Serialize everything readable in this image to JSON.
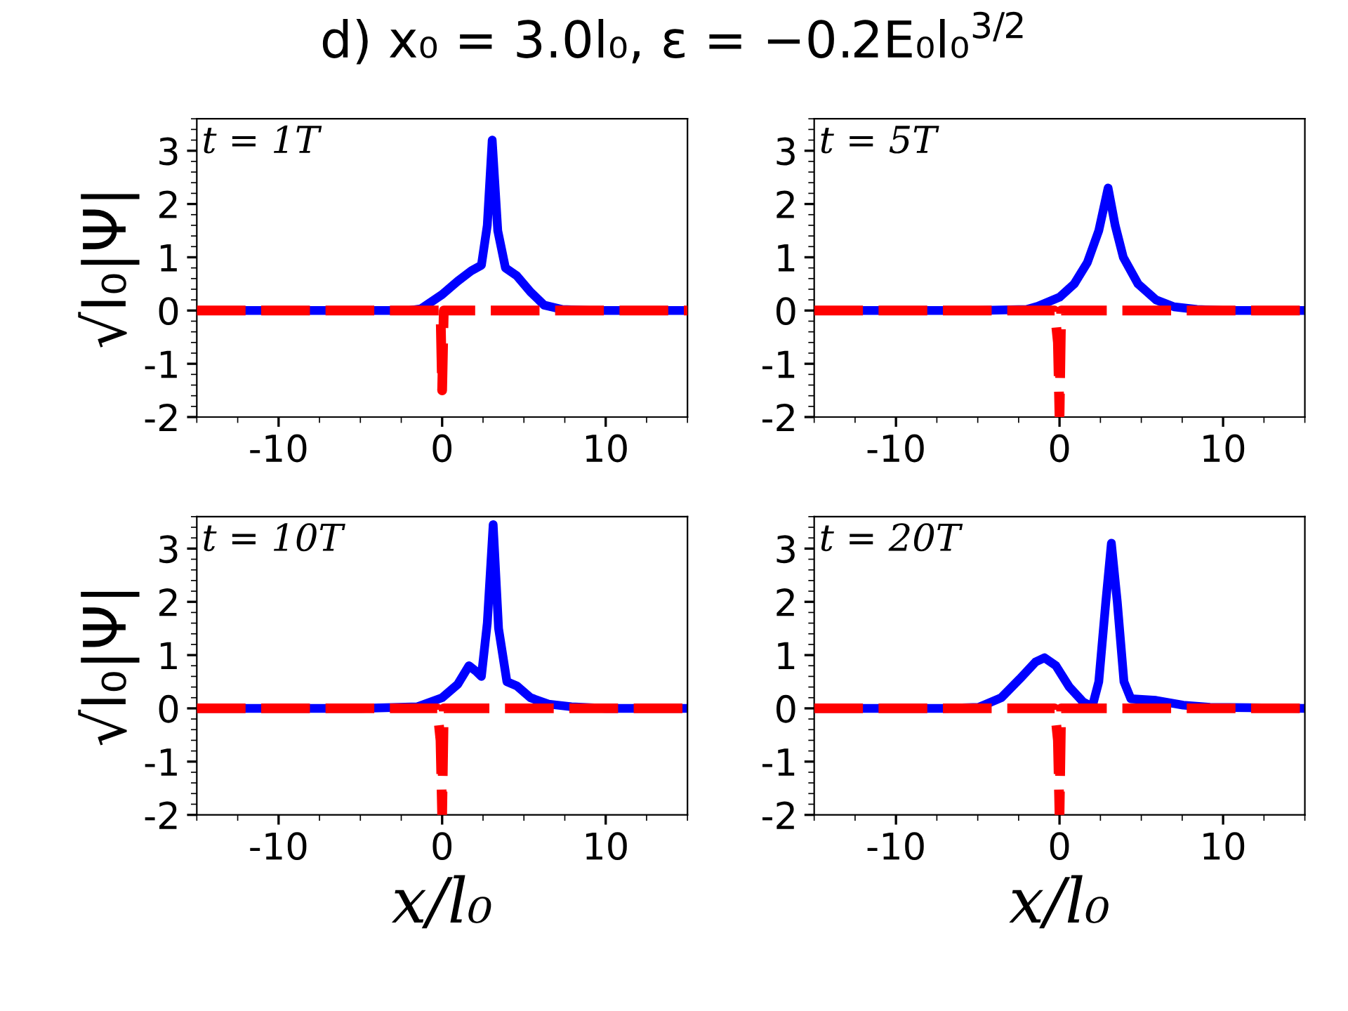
{
  "chart_data": [
    {
      "type": "line",
      "title": "d) x₀ = 3.0l₀, ε = −0.2E₀l₀$^{3/2}$",
      "ylabel": "√l₀|Ψ|",
      "annotations": [
        "t = 1T"
      ],
      "xlim": [
        -15,
        15
      ],
      "ylim": [
        -2,
        3.6
      ],
      "xticks": [
        -10,
        0,
        10
      ],
      "yticks": [
        -2,
        -1,
        0,
        1,
        2,
        3
      ],
      "series": [
        {
          "color": "#0000ff",
          "line_style": "solid",
          "x": [
            -15,
            -5,
            -2,
            -1.3,
            0,
            0.95,
            1.8,
            2.4,
            2.76,
            3.06,
            3.4,
            3.87,
            4.57,
            5.4,
            6.24,
            7.35,
            9,
            15
          ],
          "values": [
            0,
            0,
            0,
            0.03,
            0.3,
            0.55,
            0.75,
            0.85,
            1.6,
            3.2,
            1.5,
            0.8,
            0.65,
            0.35,
            0.1,
            0.02,
            0,
            0
          ]
        },
        {
          "color": "#ff0000",
          "line_style": "dashed",
          "x": [
            -15,
            -0.1,
            0,
            0.1,
            15
          ],
          "values": [
            0,
            0,
            -1.5,
            0,
            0
          ]
        }
      ]
    },
    {
      "type": "line",
      "annotations": [
        "t = 5T"
      ],
      "xlim": [
        -15,
        15
      ],
      "ylim": [
        -2,
        3.6
      ],
      "xticks": [
        -10,
        0,
        10
      ],
      "yticks": [
        -2,
        -1,
        0,
        1,
        2,
        3
      ],
      "series": [
        {
          "color": "#0000ff",
          "line_style": "solid",
          "x": [
            -15,
            -5,
            -2,
            -1.33,
            0,
            0.9,
            1.7,
            2.4,
            2.97,
            3.4,
            3.9,
            4.8,
            5.9,
            7,
            8.4,
            10,
            15
          ],
          "values": [
            0,
            0,
            0.02,
            0.08,
            0.25,
            0.5,
            0.9,
            1.5,
            2.3,
            1.6,
            1.0,
            0.5,
            0.2,
            0.07,
            0.02,
            0,
            0
          ]
        },
        {
          "color": "#ff0000",
          "line_style": "dashed",
          "x": [
            -15,
            -0.3,
            -0.1,
            0,
            0.1,
            15
          ],
          "values": [
            0,
            0,
            -0.6,
            -2,
            0,
            0
          ]
        }
      ]
    },
    {
      "type": "line",
      "ylabel": "√l₀|Ψ|",
      "xlabel": "x/l₀",
      "annotations": [
        "t = 10T"
      ],
      "xlim": [
        -15,
        15
      ],
      "ylim": [
        -2,
        3.6
      ],
      "xticks": [
        -10,
        0,
        10
      ],
      "yticks": [
        -2,
        -1,
        0,
        1,
        2,
        3
      ],
      "series": [
        {
          "color": "#0000ff",
          "line_style": "solid",
          "x": [
            -15,
            -5,
            -1.5,
            0,
            0.95,
            1.64,
            2.06,
            2.4,
            2.76,
            3.12,
            3.45,
            3.96,
            4.57,
            5.4,
            6.5,
            7.9,
            10,
            15
          ],
          "values": [
            0,
            0,
            0.03,
            0.2,
            0.45,
            0.8,
            0.7,
            0.6,
            1.6,
            3.45,
            1.5,
            0.5,
            0.42,
            0.2,
            0.08,
            0.03,
            0,
            0
          ]
        },
        {
          "color": "#ff0000",
          "line_style": "dashed",
          "x": [
            -15,
            -0.3,
            -0.1,
            0,
            0.1,
            15
          ],
          "values": [
            0,
            0,
            -0.6,
            -2,
            0,
            0
          ]
        }
      ]
    },
    {
      "type": "line",
      "xlabel": "x/l₀",
      "annotations": [
        "t = 20T"
      ],
      "xlim": [
        -15,
        15
      ],
      "ylim": [
        -2,
        3.6
      ],
      "xticks": [
        -10,
        0,
        10
      ],
      "yticks": [
        -2,
        -1,
        0,
        1,
        2,
        3
      ],
      "series": [
        {
          "color": "#0000ff",
          "line_style": "solid",
          "x": [
            -15,
            -7,
            -4.95,
            -3.56,
            -2.44,
            -1.47,
            -0.92,
            -0.22,
            0.6,
            1.44,
            2.0,
            2.4,
            2.83,
            3.17,
            3.53,
            3.94,
            4.36,
            5.9,
            7.56,
            9.2,
            15
          ],
          "values": [
            0,
            0,
            0.02,
            0.2,
            0.55,
            0.87,
            0.95,
            0.8,
            0.4,
            0.12,
            0.03,
            0.5,
            2.0,
            3.1,
            2.0,
            0.5,
            0.18,
            0.15,
            0.06,
            0.02,
            0
          ]
        },
        {
          "color": "#ff0000",
          "line_style": "dashed",
          "x": [
            -15,
            -0.3,
            -0.1,
            0,
            0.1,
            15
          ],
          "values": [
            0,
            0,
            -0.6,
            -2,
            0,
            0
          ]
        }
      ]
    }
  ]
}
